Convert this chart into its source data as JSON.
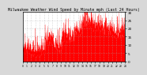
{
  "title": "Milwaukee Weather Wind Speed by Minute mph (Last 24 Hours)",
  "bg_color": "#d8d8d8",
  "plot_bg_color": "#ffffff",
  "fill_color": "#ff0000",
  "grid_color": "#aaaaaa",
  "ylim": [
    0,
    30
  ],
  "yticks": [
    0,
    5,
    10,
    15,
    20,
    25,
    30
  ],
  "ytick_labels": [
    "0",
    "5",
    "10",
    "15",
    "20",
    "25",
    "30"
  ],
  "n_points": 1440,
  "title_fontsize": 3.5,
  "tick_fontsize": 3.0,
  "seed": 42
}
